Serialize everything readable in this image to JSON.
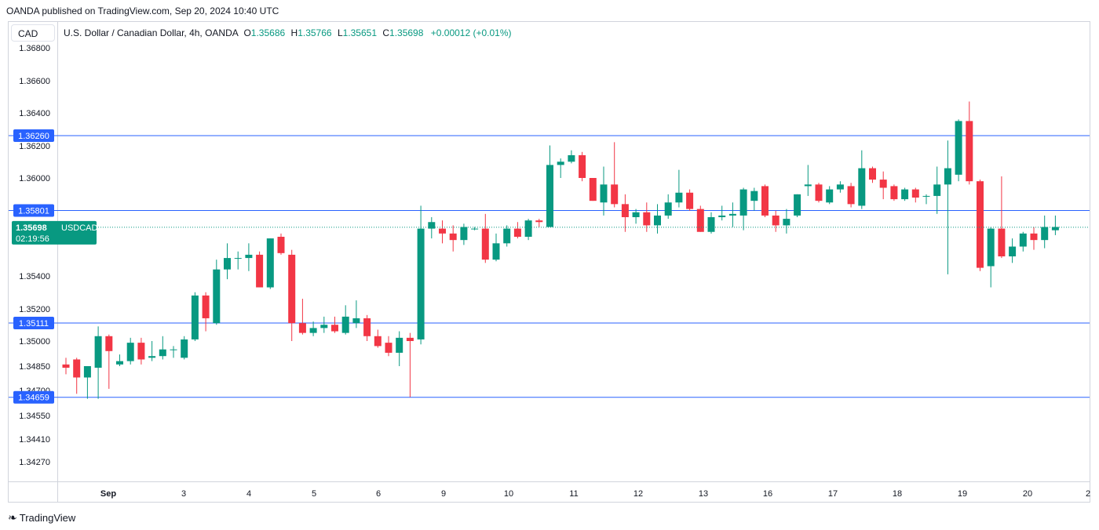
{
  "header": {
    "publisher_line": "OANDA published on TradingView.com, Sep 20, 2024 10:40 UTC",
    "currency": "CAD",
    "symbol_desc": "U.S. Dollar / Canadian Dollar, 4h, OANDA",
    "o_label": "O",
    "o_value": "1.35686",
    "h_label": "H",
    "h_value": "1.35766",
    "l_label": "L",
    "l_value": "1.35651",
    "c_label": "C",
    "c_value": "1.35698",
    "change": "+0.00012 (+0.01%)"
  },
  "footer": {
    "brand": "TradingView"
  },
  "colors": {
    "up": "#089981",
    "down": "#f23645",
    "hline": "#2962ff",
    "price_label_bg": "#089981"
  },
  "chart_data": {
    "type": "candlestick",
    "symbol": "USDCAD",
    "interval": "4h",
    "y_ticks": [
      "1.36800",
      "1.36600",
      "1.36400",
      "1.36200",
      "1.36000",
      "1.35400",
      "1.35200",
      "1.35000",
      "1.34850",
      "1.34700",
      "1.34550",
      "1.34410",
      "1.34270"
    ],
    "x_ticks": [
      "Sep",
      "3",
      "4",
      "5",
      "6",
      "9",
      "10",
      "11",
      "12",
      "13",
      "16",
      "17",
      "18",
      "19",
      "20",
      "2"
    ],
    "horizontal_lines": [
      "1.36260",
      "1.35801",
      "1.35111",
      "1.34659"
    ],
    "last_price": {
      "value": "1.35698",
      "symbol": "USDCAD",
      "countdown": "02:19:56"
    },
    "candles": [
      [
        1.3486,
        1.349,
        1.348,
        1.3484
      ],
      [
        1.3489,
        1.349,
        1.3468,
        1.3478
      ],
      [
        1.3478,
        1.3485,
        1.3465,
        1.3485
      ],
      [
        1.3484,
        1.3509,
        1.3465,
        1.3503
      ],
      [
        1.3503,
        1.3504,
        1.3471,
        1.3494
      ],
      [
        1.3486,
        1.3492,
        1.3485,
        1.3488
      ],
      [
        1.3488,
        1.3502,
        1.3486,
        1.3499
      ],
      [
        1.3499,
        1.3502,
        1.3486,
        1.3489
      ],
      [
        1.349,
        1.35,
        1.3488,
        1.3491
      ],
      [
        1.3491,
        1.3503,
        1.3489,
        1.3495
      ],
      [
        1.3495,
        1.3497,
        1.349,
        1.3495
      ],
      [
        1.349,
        1.3503,
        1.3489,
        1.3501
      ],
      [
        1.3501,
        1.353,
        1.35,
        1.3528
      ],
      [
        1.3528,
        1.353,
        1.3506,
        1.3514
      ],
      [
        1.3511,
        1.355,
        1.351,
        1.3544
      ],
      [
        1.3544,
        1.356,
        1.3538,
        1.3551
      ],
      [
        1.3551,
        1.3555,
        1.3544,
        1.3551
      ],
      [
        1.3551,
        1.356,
        1.3543,
        1.3553
      ],
      [
        1.3553,
        1.3555,
        1.3533,
        1.3533
      ],
      [
        1.3533,
        1.3563,
        1.3532,
        1.3563
      ],
      [
        1.3564,
        1.3566,
        1.3553,
        1.3554
      ],
      [
        1.3553,
        1.3556,
        1.35,
        1.3511
      ],
      [
        1.3511,
        1.3526,
        1.3504,
        1.3505
      ],
      [
        1.3505,
        1.3512,
        1.3503,
        1.3508
      ],
      [
        1.3508,
        1.3515,
        1.3505,
        1.351
      ],
      [
        1.351,
        1.3515,
        1.3505,
        1.3506
      ],
      [
        1.3505,
        1.3522,
        1.3504,
        1.3515
      ],
      [
        1.3511,
        1.3525,
        1.3508,
        1.3514
      ],
      [
        1.3514,
        1.3516,
        1.35,
        1.3503
      ],
      [
        1.3503,
        1.3507,
        1.3496,
        1.3497
      ],
      [
        1.3499,
        1.3503,
        1.3491,
        1.3493
      ],
      [
        1.3493,
        1.3506,
        1.3485,
        1.3502
      ],
      [
        1.3502,
        1.3505,
        1.3466,
        1.35
      ],
      [
        1.3501,
        1.3583,
        1.3498,
        1.3569
      ],
      [
        1.3569,
        1.3576,
        1.3563,
        1.3573
      ],
      [
        1.3569,
        1.3574,
        1.356,
        1.3566
      ],
      [
        1.3566,
        1.3571,
        1.3555,
        1.3562
      ],
      [
        1.3562,
        1.3572,
        1.3559,
        1.357
      ],
      [
        1.3569,
        1.357,
        1.3568,
        1.3569
      ],
      [
        1.3569,
        1.3578,
        1.3548,
        1.355
      ],
      [
        1.355,
        1.3566,
        1.3549,
        1.356
      ],
      [
        1.356,
        1.3571,
        1.3558,
        1.3569
      ],
      [
        1.3569,
        1.3573,
        1.3563,
        1.3564
      ],
      [
        1.3564,
        1.3575,
        1.3562,
        1.3574
      ],
      [
        1.3574,
        1.3575,
        1.357,
        1.3573
      ],
      [
        1.357,
        1.362,
        1.357,
        1.3608
      ],
      [
        1.3608,
        1.3612,
        1.36,
        1.361
      ],
      [
        1.361,
        1.3617,
        1.3609,
        1.3614
      ],
      [
        1.3614,
        1.3616,
        1.3598,
        1.36
      ],
      [
        1.36,
        1.36,
        1.3586,
        1.3586
      ],
      [
        1.3585,
        1.3607,
        1.3577,
        1.3596
      ],
      [
        1.3596,
        1.3622,
        1.3582,
        1.3584
      ],
      [
        1.3584,
        1.359,
        1.3567,
        1.3576
      ],
      [
        1.3576,
        1.3581,
        1.3572,
        1.3579
      ],
      [
        1.3579,
        1.3585,
        1.3567,
        1.3571
      ],
      [
        1.3571,
        1.3584,
        1.3566,
        1.3577
      ],
      [
        1.3577,
        1.359,
        1.3575,
        1.3585
      ],
      [
        1.3585,
        1.3605,
        1.3582,
        1.3591
      ],
      [
        1.3591,
        1.3593,
        1.358,
        1.3581
      ],
      [
        1.3581,
        1.3583,
        1.3567,
        1.3567
      ],
      [
        1.3567,
        1.3579,
        1.3566,
        1.3576
      ],
      [
        1.3576,
        1.3583,
        1.3574,
        1.3577
      ],
      [
        1.3577,
        1.3585,
        1.357,
        1.3578
      ],
      [
        1.3577,
        1.3594,
        1.3568,
        1.3593
      ],
      [
        1.3586,
        1.3594,
        1.358,
        1.3592
      ],
      [
        1.3595,
        1.3596,
        1.3576,
        1.3577
      ],
      [
        1.3577,
        1.358,
        1.3567,
        1.3571
      ],
      [
        1.3571,
        1.3581,
        1.3566,
        1.3575
      ],
      [
        1.3577,
        1.359,
        1.3576,
        1.359
      ],
      [
        1.3595,
        1.3608,
        1.3589,
        1.3596
      ],
      [
        1.3596,
        1.3597,
        1.3585,
        1.3586
      ],
      [
        1.3585,
        1.3595,
        1.3584,
        1.3593
      ],
      [
        1.3593,
        1.3598,
        1.3591,
        1.3596
      ],
      [
        1.3595,
        1.3597,
        1.3582,
        1.3584
      ],
      [
        1.3583,
        1.3617,
        1.3581,
        1.3606
      ],
      [
        1.3606,
        1.3607,
        1.3597,
        1.3599
      ],
      [
        1.3599,
        1.3604,
        1.3587,
        1.3594
      ],
      [
        1.3595,
        1.3596,
        1.3586,
        1.3587
      ],
      [
        1.3587,
        1.3594,
        1.3586,
        1.3593
      ],
      [
        1.3593,
        1.3594,
        1.3585,
        1.3588
      ],
      [
        1.3589,
        1.359,
        1.3584,
        1.3589
      ],
      [
        1.3589,
        1.3607,
        1.3578,
        1.3596
      ],
      [
        1.3596,
        1.3623,
        1.3541,
        1.3606
      ],
      [
        1.3602,
        1.3636,
        1.3598,
        1.3635
      ],
      [
        1.3635,
        1.3647,
        1.3596,
        1.3598
      ],
      [
        1.3598,
        1.3599,
        1.3543,
        1.3545
      ],
      [
        1.3546,
        1.357,
        1.3533,
        1.3569
      ],
      [
        1.3569,
        1.3601,
        1.3551,
        1.3552
      ],
      [
        1.3552,
        1.3563,
        1.3548,
        1.3558
      ],
      [
        1.3558,
        1.3567,
        1.3555,
        1.3566
      ],
      [
        1.3566,
        1.357,
        1.3556,
        1.3562
      ],
      [
        1.3562,
        1.3577,
        1.3557,
        1.357
      ],
      [
        1.3568,
        1.3577,
        1.3565,
        1.357
      ]
    ]
  }
}
